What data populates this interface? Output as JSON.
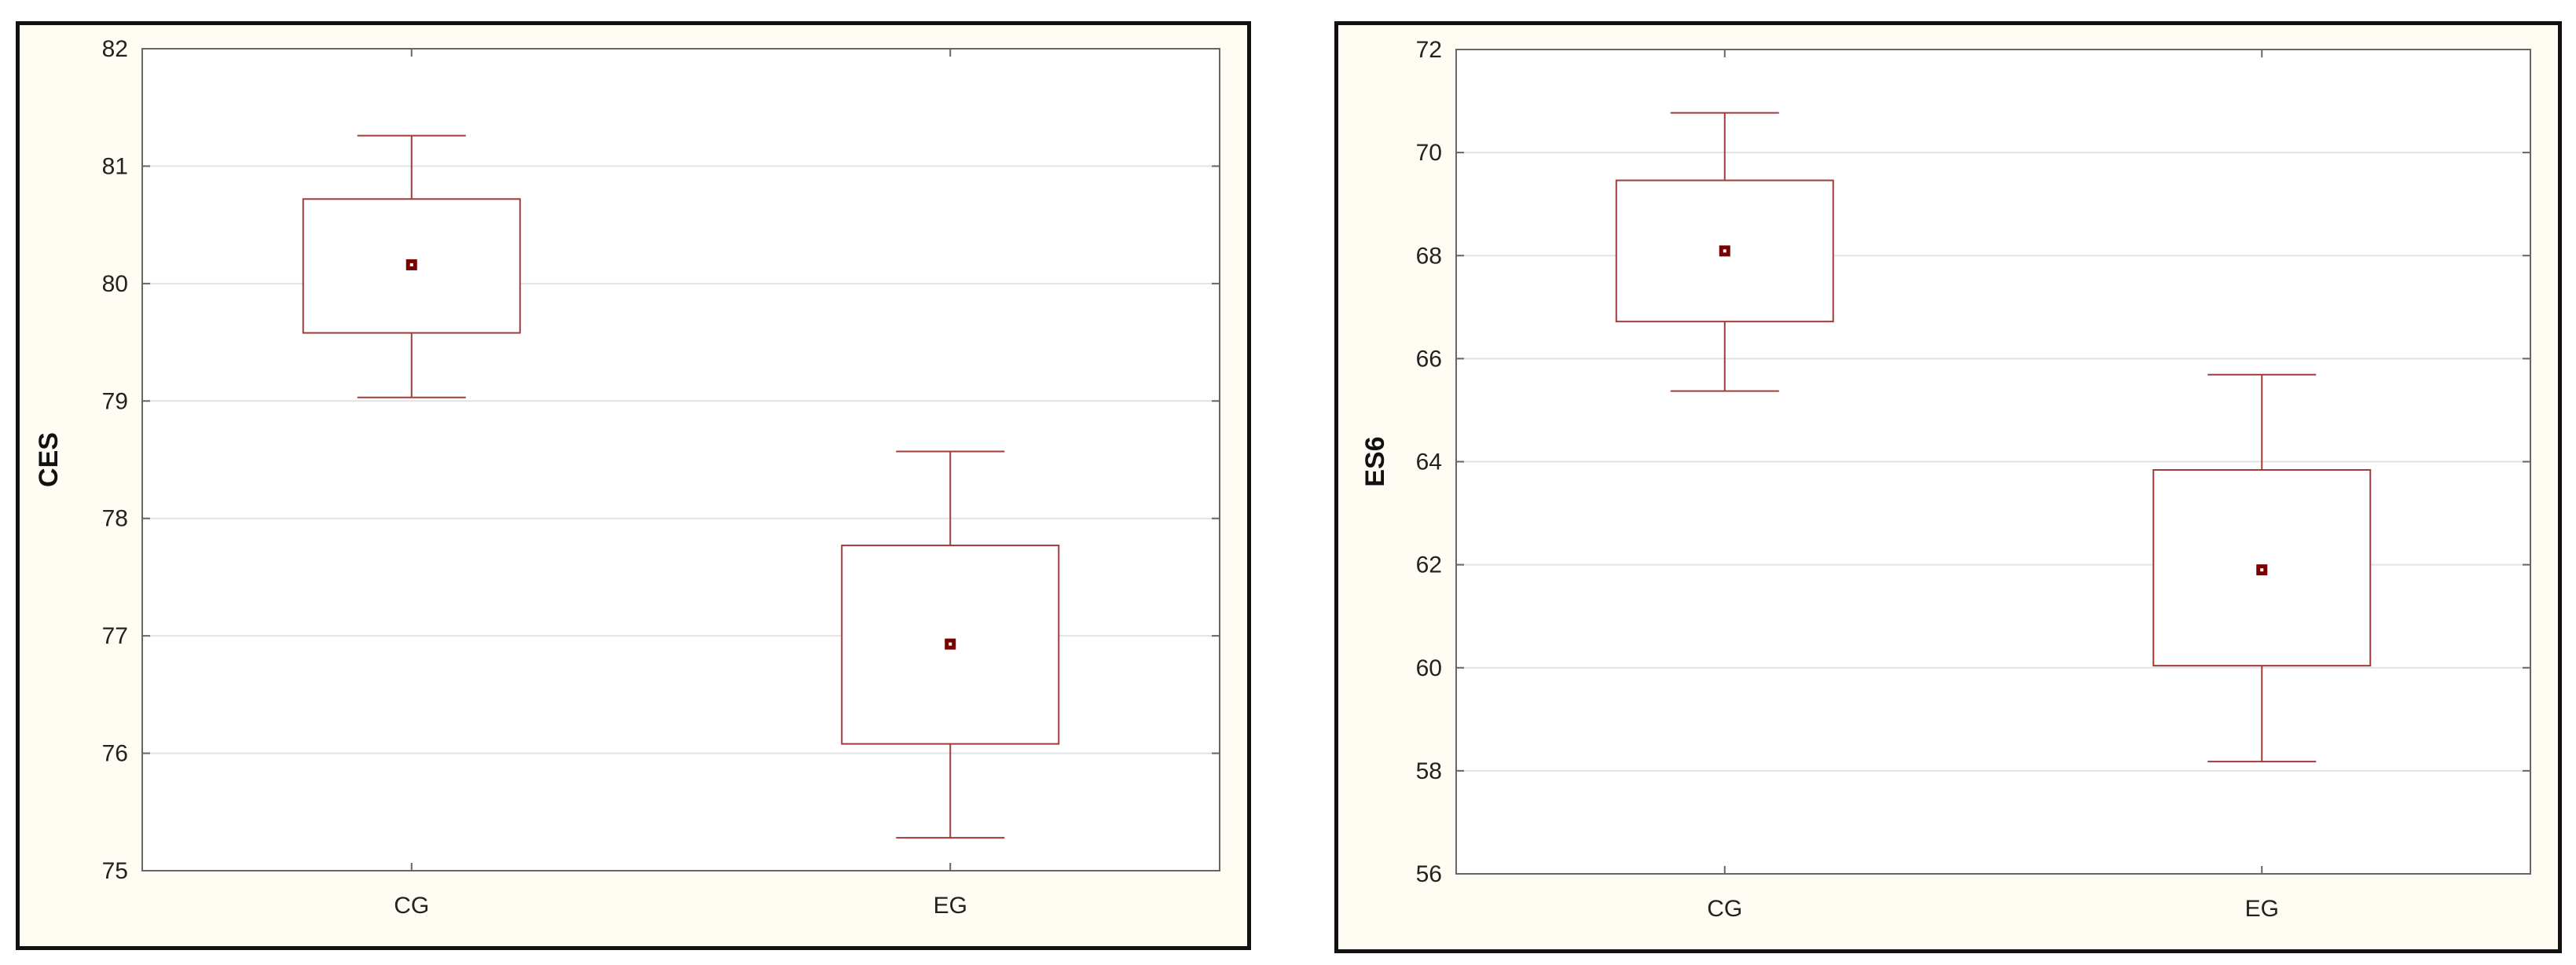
{
  "colors": {
    "box": "#a33a3a",
    "median": "#7a0000",
    "frame": "#666666",
    "grid": "#e2e2e2",
    "panel_bg": "#fffdf3",
    "plot_bg": "#ffffff"
  },
  "chart_data": [
    {
      "type": "box",
      "xlabel": "",
      "ylabel": "CES",
      "categories": [
        "CG",
        "EG"
      ],
      "ylim": [
        75,
        82
      ],
      "yticks": [
        75,
        76,
        77,
        78,
        79,
        80,
        81,
        82
      ],
      "grid": true,
      "series": [
        {
          "category": "CG",
          "whisker_low": 79.03,
          "q1": 79.58,
          "median": 80.16,
          "q3": 80.72,
          "whisker_high": 81.26
        },
        {
          "category": "EG",
          "whisker_low": 75.28,
          "q1": 76.08,
          "median": 76.93,
          "q3": 77.77,
          "whisker_high": 78.57
        }
      ]
    },
    {
      "type": "box",
      "xlabel": "",
      "ylabel": "ES6",
      "categories": [
        "CG",
        "EG"
      ],
      "ylim": [
        56,
        72
      ],
      "yticks": [
        56,
        58,
        60,
        62,
        64,
        66,
        68,
        70,
        72
      ],
      "grid": true,
      "series": [
        {
          "category": "CG",
          "whisker_low": 65.37,
          "q1": 66.72,
          "median": 68.09,
          "q3": 69.46,
          "whisker_high": 70.77
        },
        {
          "category": "EG",
          "whisker_low": 58.18,
          "q1": 60.04,
          "median": 61.9,
          "q3": 63.84,
          "whisker_high": 65.69
        }
      ]
    }
  ]
}
